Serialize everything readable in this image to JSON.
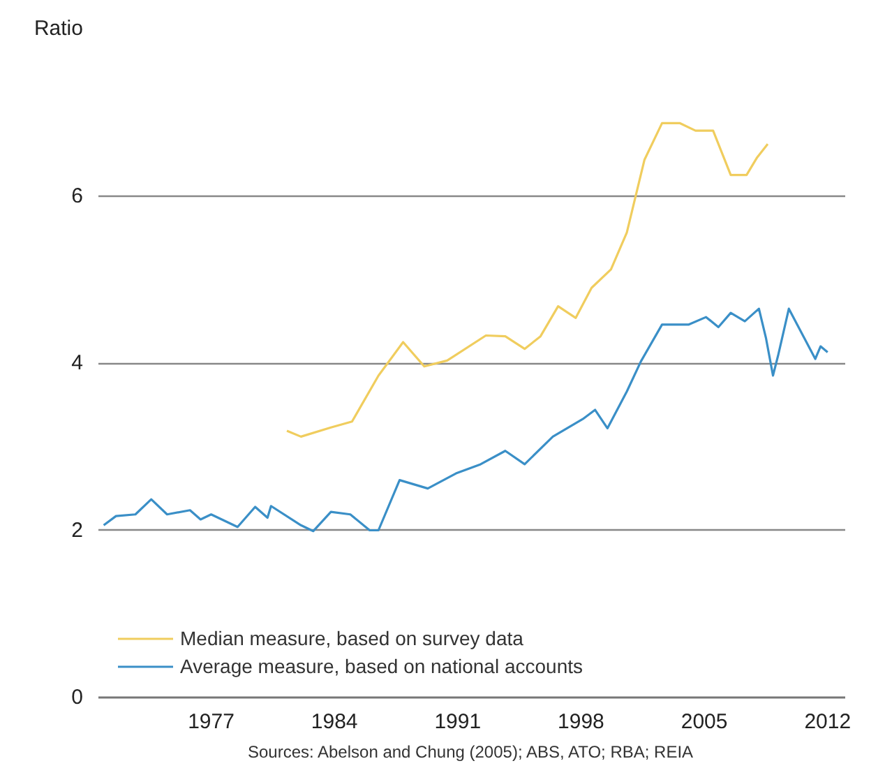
{
  "chart_data": {
    "type": "line",
    "xlim": [
      1970.6,
      2013.0
    ],
    "xticks": [
      1977,
      1984,
      1991,
      1998,
      2005,
      2012
    ],
    "ylim": [
      0,
      8
    ],
    "yticks": [
      0,
      2,
      4,
      6,
      {
        "value": 8,
        "label": "Ratio"
      }
    ],
    "grid": "y",
    "legend": "bottom left",
    "line_style": "solid",
    "series": [
      {
        "name": "Median measure, based on survey data",
        "color": "#f0cd5e",
        "x": [
          1981.3,
          1982.1,
          1983.8,
          1985.0,
          1986.5,
          1987.9,
          1989.1,
          1990.4,
          1992.6,
          1993.7,
          1994.8,
          1995.7,
          1996.7,
          1997.7,
          1998.6,
          1999.7,
          2000.6,
          2001.6,
          2002.6,
          2003.6,
          2004.5,
          2005.5,
          2006.5,
          2007.4,
          2008.0,
          2008.6
        ],
        "values": [
          3.19,
          3.12,
          3.23,
          3.3,
          3.85,
          4.25,
          3.96,
          4.03,
          4.33,
          4.32,
          4.17,
          4.32,
          4.68,
          4.54,
          4.9,
          5.12,
          5.56,
          6.43,
          6.87,
          6.87,
          6.78,
          6.78,
          6.25,
          6.25,
          6.46,
          6.62
        ]
      },
      {
        "name": "Average measure, based on national accounts",
        "color": "#3a8fc7",
        "x": [
          1970.9,
          1971.6,
          1972.7,
          1973.6,
          1974.5,
          1975.8,
          1976.4,
          1977.0,
          1978.5,
          1979.5,
          1980.2,
          1980.4,
          1982.1,
          1982.8,
          1983.8,
          1984.9,
          1986.0,
          1986.5,
          1987.7,
          1989.3,
          1990.9,
          1992.3,
          1993.7,
          1994.8,
          1996.4,
          1998.1,
          1998.8,
          1999.5,
          2000.6,
          2001.4,
          2002.6,
          2004.1,
          2005.1,
          2005.8,
          2006.5,
          2007.3,
          2008.1,
          2008.5,
          2008.9,
          2009.2,
          2009.8,
          2011.3,
          2011.6,
          2012.0
        ],
        "values": [
          2.06,
          2.17,
          2.19,
          2.37,
          2.19,
          2.24,
          2.13,
          2.19,
          2.04,
          2.28,
          2.15,
          2.29,
          2.06,
          1.99,
          2.22,
          2.19,
          2.0,
          2.0,
          2.6,
          2.5,
          2.68,
          2.79,
          2.95,
          2.79,
          3.12,
          3.33,
          3.44,
          3.22,
          3.66,
          4.02,
          4.46,
          4.46,
          4.55,
          4.43,
          4.6,
          4.5,
          4.65,
          4.3,
          3.85,
          4.1,
          4.65,
          4.05,
          4.2,
          4.13
        ]
      }
    ],
    "annotations": [
      "Sources: Abelson and Chung (2005); ABS, ATO; RBA; REIA"
    ]
  }
}
